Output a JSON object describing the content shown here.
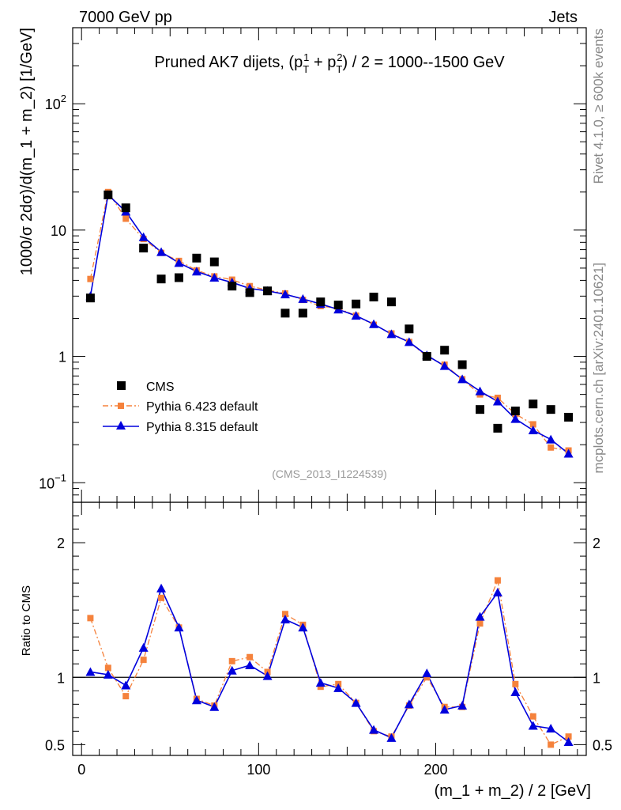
{
  "header": {
    "left": "7000 GeV pp",
    "right": "Jets",
    "side_top": "Rivet 4.1.0, ≥ 600k events",
    "side_bottom": "mcplots.cern.ch [arXiv:2401.10621]"
  },
  "colors": {
    "cms": "#000000",
    "pythia6": "#f5823c",
    "pythia8": "#0000dd",
    "ref_label": "#999999",
    "side_text": "#888888"
  },
  "chart_data": [
    {
      "type": "scatter",
      "panel": "main",
      "title_main": "Pruned AK7 dijets, (p",
      "title_sub1": "T",
      "title_sup1": "1",
      "title_plus": " + p",
      "title_sub2": "T",
      "title_sup2": "2",
      "title_tail": ") / 2 = 1000--1500 GeV",
      "ylabel": "1000/σ   2dσ)/d(m_1 + m_2) [1/GeV]",
      "xlabel": "",
      "yscale": "log",
      "xlim": [
        -5,
        285
      ],
      "ylim": [
        0.07,
        400
      ],
      "ytick_major_labels": [
        {
          "value": 0.1,
          "base": "10",
          "exp": "−1"
        },
        {
          "value": 1,
          "base": "1",
          "exp": ""
        },
        {
          "value": 10,
          "base": "10",
          "exp": ""
        },
        {
          "value": 100,
          "base": "10",
          "exp": "2"
        }
      ],
      "reference_label": "(CMS_2013_I1224539)",
      "legend_position": "lower-left",
      "legend": [
        "CMS",
        "Pythia 6.423 default",
        "Pythia 8.315 default"
      ],
      "x": [
        5,
        15,
        25,
        35,
        45,
        55,
        65,
        75,
        85,
        95,
        105,
        115,
        125,
        135,
        145,
        155,
        165,
        175,
        185,
        195,
        205,
        215,
        225,
        235,
        245,
        255,
        265,
        275
      ],
      "series": [
        {
          "name": "CMS",
          "style": "square-marker",
          "values": [
            2.9,
            19.0,
            15.0,
            7.2,
            4.1,
            4.2,
            6.0,
            5.6,
            3.6,
            3.2,
            3.3,
            2.2,
            2.2,
            2.7,
            2.55,
            2.6,
            2.95,
            2.7,
            1.65,
            1.0,
            1.12,
            0.86,
            0.38,
            0.27,
            0.37,
            0.42,
            0.38,
            0.33
          ]
        },
        {
          "name": "Pythia 6.423 default",
          "style": "dash-dot-square",
          "values": [
            4.1,
            20.0,
            12.3,
            8.5,
            6.6,
            5.7,
            4.8,
            4.3,
            4.05,
            3.6,
            3.35,
            3.15,
            2.8,
            2.5,
            2.4,
            2.1,
            1.78,
            1.52,
            1.3,
            1.0,
            0.86,
            0.66,
            0.5,
            0.47,
            0.35,
            0.29,
            0.19,
            0.18
          ]
        },
        {
          "name": "Pythia 8.315 default",
          "style": "solid-triangle",
          "values": [
            3.0,
            19.0,
            14.0,
            8.8,
            6.7,
            5.5,
            4.7,
            4.2,
            3.85,
            3.45,
            3.3,
            3.1,
            2.85,
            2.6,
            2.35,
            2.1,
            1.8,
            1.5,
            1.3,
            1.02,
            0.84,
            0.66,
            0.53,
            0.44,
            0.32,
            0.26,
            0.22,
            0.17
          ]
        }
      ]
    },
    {
      "type": "line",
      "panel": "ratio",
      "ylabel": "Ratio to CMS",
      "xlabel": "(m_1 + m_2) / 2 [GeV]",
      "xlim": [
        -5,
        285
      ],
      "ylim": [
        0.42,
        2.3
      ],
      "xtick_labels": [
        "0",
        "100",
        "200"
      ],
      "xtick_values": [
        0,
        100,
        200
      ],
      "ytick_labels": [
        "0.5",
        "1",
        "2"
      ],
      "ytick_values": [
        0.5,
        1,
        2
      ],
      "x": [
        5,
        15,
        25,
        35,
        45,
        55,
        65,
        75,
        85,
        95,
        105,
        115,
        125,
        135,
        145,
        155,
        165,
        175,
        185,
        195,
        205,
        215,
        225,
        235,
        245,
        255,
        265,
        275
      ],
      "series": [
        {
          "name": "Pythia 6.423 default",
          "style": "dash-dot-square",
          "values": [
            1.44,
            1.07,
            0.86,
            1.13,
            1.59,
            1.37,
            0.84,
            0.79,
            1.12,
            1.15,
            1.04,
            1.47,
            1.39,
            0.93,
            0.95,
            0.81,
            0.6,
            0.56,
            0.79,
            1.0,
            0.78,
            0.78,
            1.4,
            1.72,
            0.95,
            0.71,
            0.5,
            0.56
          ]
        },
        {
          "name": "Pythia 8.315 default",
          "style": "solid-triangle",
          "values": [
            1.04,
            1.02,
            0.94,
            1.22,
            1.66,
            1.37,
            0.83,
            0.78,
            1.05,
            1.09,
            1.01,
            1.43,
            1.37,
            0.96,
            0.92,
            0.81,
            0.61,
            0.55,
            0.8,
            1.03,
            0.76,
            0.79,
            1.45,
            1.63,
            0.89,
            0.64,
            0.62,
            0.52
          ]
        }
      ]
    }
  ]
}
